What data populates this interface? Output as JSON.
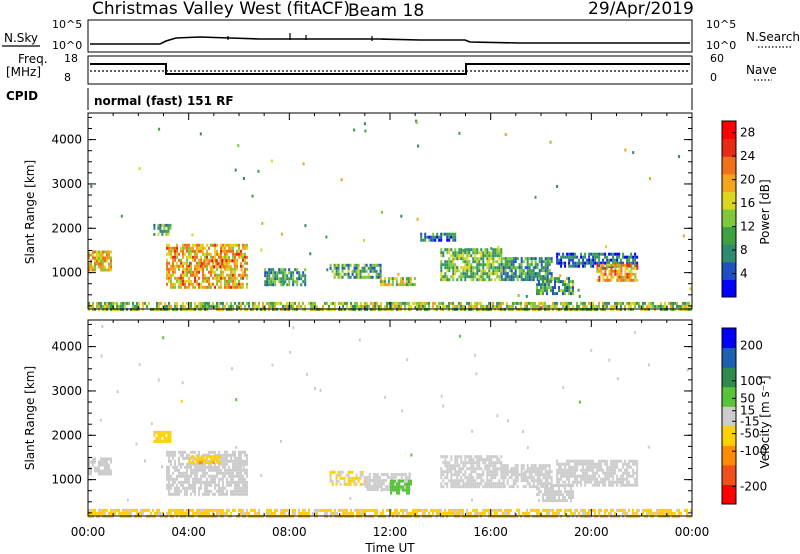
{
  "header": {
    "station": "Christmas Valley West (fitACF)",
    "beam": "Beam 18",
    "date": "29/Apr/2019"
  },
  "top_panels": {
    "nsky_label": "N.Sky",
    "nsky_ticks": [
      "10^5",
      "10^0"
    ],
    "nsearch_label": "N.Search",
    "nsearch_ticks": [
      "10^5",
      "10^0"
    ],
    "freq_label_line1": "Freq.",
    "freq_label_line2": "[MHz]",
    "freq_ticks": [
      "18",
      "8"
    ],
    "nave_label": "Nave",
    "nave_ticks": [
      "60",
      "0"
    ],
    "cpid_label": "CPID",
    "cpid_text": "normal (fast) 151 RF"
  },
  "chart_data": [
    {
      "type": "heatmap",
      "name": "power",
      "ylabel": "Slant Range [km]",
      "yticks": [
        "4000",
        "3000",
        "2000",
        "1000"
      ],
      "ylim": [
        180,
        4600
      ],
      "xticks": [
        "00:00",
        "04:00",
        "08:00",
        "12:00",
        "16:00",
        "20:00",
        "00:00"
      ],
      "xlim_hours": [
        0,
        24
      ],
      "colorbar": {
        "label": "Power [dB]",
        "ticks": [
          "28",
          "24",
          "20",
          "16",
          "12",
          "8",
          "4"
        ],
        "range": [
          0,
          30
        ],
        "colors": [
          "#0000ff",
          "#1f4fc0",
          "#2f8a6e",
          "#3ea040",
          "#7ec83c",
          "#dcd61e",
          "#f4a41c",
          "#f0701c",
          "#e82a16",
          "#ff0000"
        ]
      },
      "regions": [
        {
          "t": [
            0.0,
            0.95
          ],
          "r": [
            1050,
            1500
          ],
          "level": 18
        },
        {
          "t": [
            2.6,
            3.3
          ],
          "r": [
            1850,
            2100
          ],
          "level": 10
        },
        {
          "t": [
            3.1,
            6.3
          ],
          "r": [
            650,
            1650
          ],
          "level": 19
        },
        {
          "t": [
            4.5,
            5.9
          ],
          "r": [
            1100,
            1300
          ],
          "level": 22
        },
        {
          "t": [
            7.0,
            8.6
          ],
          "r": [
            700,
            1100
          ],
          "level": 9
        },
        {
          "t": [
            9.6,
            11.6
          ],
          "r": [
            900,
            1200
          ],
          "level": 10
        },
        {
          "t": [
            11.6,
            13.0
          ],
          "r": [
            700,
            900
          ],
          "level": 14
        },
        {
          "t": [
            13.2,
            14.6
          ],
          "r": [
            1700,
            1900
          ],
          "level": 7
        },
        {
          "t": [
            14.0,
            16.4
          ],
          "r": [
            850,
            1550
          ],
          "level": 12
        },
        {
          "t": [
            16.4,
            18.4
          ],
          "r": [
            850,
            1350
          ],
          "level": 9
        },
        {
          "t": [
            17.8,
            19.3
          ],
          "r": [
            500,
            900
          ],
          "level": 10
        },
        {
          "t": [
            18.6,
            21.8
          ],
          "r": [
            1150,
            1450
          ],
          "level": 6
        },
        {
          "t": [
            20.2,
            21.8
          ],
          "r": [
            850,
            1200
          ],
          "level": 20
        },
        {
          "t": [
            0.0,
            24.0
          ],
          "r": [
            180,
            340
          ],
          "level": 14
        }
      ]
    },
    {
      "type": "heatmap",
      "name": "velocity",
      "ylabel": "Slant Range [km]",
      "yticks": [
        "4000",
        "3000",
        "2000",
        "1000"
      ],
      "ylim": [
        180,
        4600
      ],
      "xticks": [
        "00:00",
        "04:00",
        "08:00",
        "12:00",
        "16:00",
        "20:00",
        "00:00"
      ],
      "xlim_hours": [
        0,
        24
      ],
      "xlabel": "Time UT",
      "colorbar": {
        "label": "Velocity [m s⁻¹]",
        "ticks": [
          "200",
          "100",
          "50",
          "15",
          "-15",
          "-50",
          "-100",
          "-200"
        ],
        "range": [
          -250,
          250
        ],
        "colors": [
          "#ff0000",
          "#f0501a",
          "#ff8c00",
          "#ffd000",
          "#cccccc",
          "#59c43a",
          "#2f8a4e",
          "#1e5fb0",
          "#0000ff"
        ]
      },
      "regions": [
        {
          "t": [
            0.0,
            0.95
          ],
          "r": [
            1100,
            1500
          ],
          "level": 0
        },
        {
          "t": [
            2.6,
            3.3
          ],
          "r": [
            1850,
            2100
          ],
          "level": -60
        },
        {
          "t": [
            3.1,
            6.3
          ],
          "r": [
            650,
            1650
          ],
          "level": 0
        },
        {
          "t": [
            4.0,
            5.2
          ],
          "r": [
            1350,
            1550
          ],
          "level": -70
        },
        {
          "t": [
            9.6,
            11.0
          ],
          "r": [
            900,
            1200
          ],
          "level": -30
        },
        {
          "t": [
            11.0,
            12.8
          ],
          "r": [
            750,
            1150
          ],
          "level": 0
        },
        {
          "t": [
            12.0,
            12.8
          ],
          "r": [
            700,
            1000
          ],
          "level": 60
        },
        {
          "t": [
            14.0,
            16.4
          ],
          "r": [
            850,
            1550
          ],
          "level": 0
        },
        {
          "t": [
            16.4,
            18.4
          ],
          "r": [
            850,
            1350
          ],
          "level": 0
        },
        {
          "t": [
            17.8,
            19.3
          ],
          "r": [
            500,
            900
          ],
          "level": 0
        },
        {
          "t": [
            18.6,
            21.8
          ],
          "r": [
            850,
            1450
          ],
          "level": 0
        },
        {
          "t": [
            0.0,
            24.0
          ],
          "r": [
            180,
            340
          ],
          "level": -40
        }
      ]
    }
  ]
}
